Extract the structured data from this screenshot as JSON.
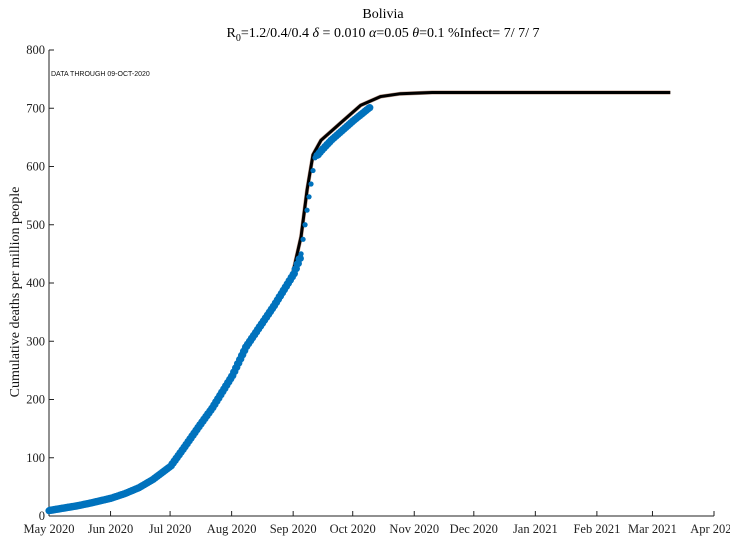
{
  "chart_data": {
    "type": "scatter",
    "title": "Bolivia",
    "subtitle": {
      "r0_base": "R",
      "r0_sub": "0",
      "r0_rest": "=1.2/0.4/0.4  ",
      "delta_sym": "δ",
      "delta_rest": " = 0.010  ",
      "alpha_sym": "α",
      "alpha_rest": "=0.05  ",
      "theta_sym": "θ",
      "theta_rest": "=0.1  %Infect= 7/ 7/ 7"
    },
    "annotation": "DATA THROUGH 09-OCT-2020",
    "xlabel": "",
    "ylabel": "Cumulative deaths per million people",
    "xlim": [
      "2020-05-01",
      "2021-04-01"
    ],
    "ylim": [
      0,
      800
    ],
    "yticks": [
      0,
      100,
      200,
      300,
      400,
      500,
      600,
      700,
      800
    ],
    "xticks": [
      {
        "date": "2020-05-01",
        "label": "May 2020"
      },
      {
        "date": "2020-06-01",
        "label": "Jun 2020"
      },
      {
        "date": "2020-07-01",
        "label": "Jul 2020"
      },
      {
        "date": "2020-08-01",
        "label": "Aug 2020"
      },
      {
        "date": "2020-09-01",
        "label": "Sep 2020"
      },
      {
        "date": "2020-10-01",
        "label": "Oct 2020"
      },
      {
        "date": "2020-11-01",
        "label": "Nov 2020"
      },
      {
        "date": "2020-12-01",
        "label": "Dec 2020"
      },
      {
        "date": "2021-01-01",
        "label": "Jan 2021"
      },
      {
        "date": "2021-02-01",
        "label": "Feb 2021"
      },
      {
        "date": "2021-03-01",
        "label": "Mar 2021"
      },
      {
        "date": "2021-04-01",
        "label": "Apr 2021"
      }
    ],
    "grid": false,
    "series": [
      {
        "kind": "observed",
        "color": "#0072bd",
        "points": [
          {
            "x": "2020-05-01",
            "y": 9
          },
          {
            "x": "2020-05-08",
            "y": 13
          },
          {
            "x": "2020-05-15",
            "y": 17
          },
          {
            "x": "2020-05-22",
            "y": 22
          },
          {
            "x": "2020-06-01",
            "y": 30
          },
          {
            "x": "2020-06-08",
            "y": 38
          },
          {
            "x": "2020-06-15",
            "y": 48
          },
          {
            "x": "2020-06-22",
            "y": 62
          },
          {
            "x": "2020-07-01",
            "y": 85
          },
          {
            "x": "2020-07-08",
            "y": 118
          },
          {
            "x": "2020-07-15",
            "y": 152
          },
          {
            "x": "2020-07-22",
            "y": 185
          },
          {
            "x": "2020-08-01",
            "y": 240
          },
          {
            "x": "2020-08-08",
            "y": 290
          },
          {
            "x": "2020-08-15",
            "y": 325
          },
          {
            "x": "2020-08-22",
            "y": 360
          },
          {
            "x": "2020-09-01",
            "y": 415
          },
          {
            "x": "2020-09-05",
            "y": 450
          },
          {
            "x": "2020-09-06",
            "y": 475
          },
          {
            "x": "2020-09-07",
            "y": 500
          },
          {
            "x": "2020-09-08",
            "y": 525
          },
          {
            "x": "2020-09-09",
            "y": 548
          },
          {
            "x": "2020-09-10",
            "y": 570
          },
          {
            "x": "2020-09-11",
            "y": 593
          },
          {
            "x": "2020-09-12",
            "y": 615
          },
          {
            "x": "2020-09-15",
            "y": 627
          },
          {
            "x": "2020-09-20",
            "y": 645
          },
          {
            "x": "2020-09-25",
            "y": 660
          },
          {
            "x": "2020-10-01",
            "y": 678
          },
          {
            "x": "2020-10-09",
            "y": 700
          }
        ]
      },
      {
        "kind": "model",
        "color": "#000000",
        "points": [
          {
            "x": "2020-09-01",
            "y": 420
          },
          {
            "x": "2020-09-05",
            "y": 480
          },
          {
            "x": "2020-09-08",
            "y": 560
          },
          {
            "x": "2020-09-11",
            "y": 620
          },
          {
            "x": "2020-09-15",
            "y": 645
          },
          {
            "x": "2020-09-25",
            "y": 675
          },
          {
            "x": "2020-10-05",
            "y": 705
          },
          {
            "x": "2020-10-15",
            "y": 720
          },
          {
            "x": "2020-10-25",
            "y": 725
          },
          {
            "x": "2020-11-10",
            "y": 727
          },
          {
            "x": "2021-01-01",
            "y": 727
          },
          {
            "x": "2021-03-10",
            "y": 727
          }
        ]
      }
    ]
  }
}
